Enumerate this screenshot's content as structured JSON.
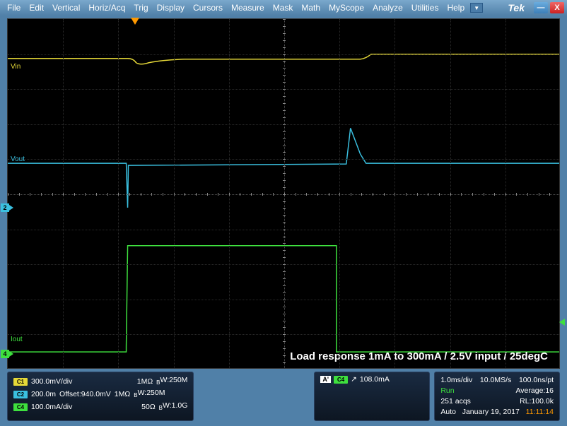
{
  "menu": {
    "items": [
      "File",
      "Edit",
      "Vertical",
      "Horiz/Acq",
      "Trig",
      "Display",
      "Cursors",
      "Measure",
      "Mask",
      "Math",
      "MyScope",
      "Analyze",
      "Utilities",
      "Help"
    ]
  },
  "brand": "Tek",
  "annotation": "Load response 1mA to 300mA / 2.5V input / 25degC",
  "labels": {
    "vin": "Vin",
    "vout": "Vout",
    "iout": "Iout"
  },
  "channels": {
    "c1": {
      "badge": "C1",
      "scale": "300.0mV/div",
      "imp": "1MΩ",
      "bw": "250M"
    },
    "c2": {
      "badge": "C2",
      "scale": "200.0m",
      "offset": "Offset:940.0mV",
      "imp": "1MΩ",
      "bw": "250M"
    },
    "c4": {
      "badge": "C4",
      "scale": "100.0mA/div",
      "imp": "50Ω",
      "bw": "1.0G"
    }
  },
  "trigger": {
    "a": "A'",
    "ch": "C4",
    "edge": "↗",
    "level": "108.0mA"
  },
  "timebase": {
    "scale": "1.0ms/div",
    "rate": "10.0MS/s",
    "res": "100.0ns/pt"
  },
  "status": {
    "run": "Run",
    "avg": "Average:16",
    "acqs": "251 acqs",
    "rl": "RL:100.0k",
    "mode": "Auto",
    "date": "January 19, 2017",
    "time": "11:11:14"
  },
  "colors": {
    "c1": "#e5d838",
    "c2": "#3ac0e0",
    "c4": "#3ee03e"
  }
}
